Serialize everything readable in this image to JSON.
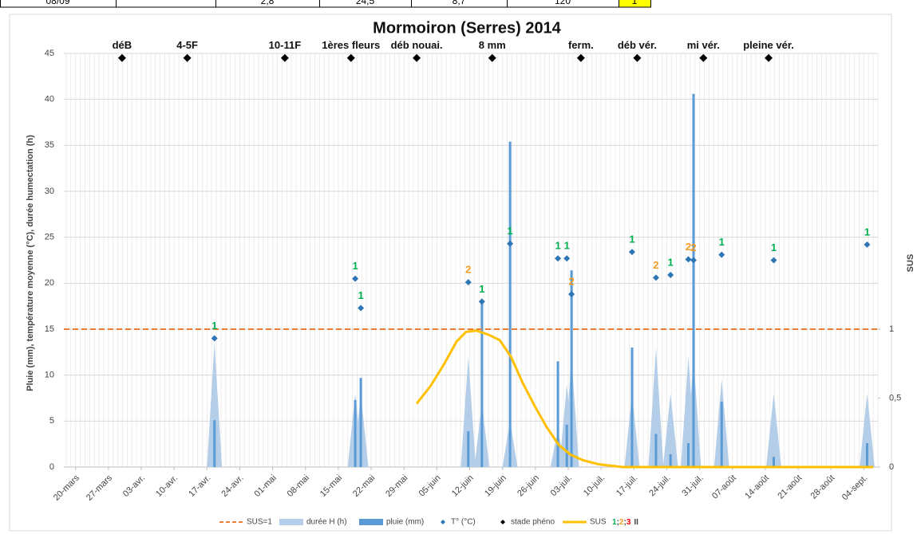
{
  "table_row": [
    "08/09",
    "",
    "2,8",
    "24,5",
    "8,7",
    "120",
    "1"
  ],
  "chart_data": {
    "type": "combo",
    "title": "Mormoiron (Serres) 2014",
    "y_label": "Pluie (mm), température moyenne (°C), durée humectation (h)",
    "y2_label": "SUS",
    "xlim": [
      -2.5,
      171
    ],
    "ylim": [
      0,
      45
    ],
    "y2lim": [
      0,
      3
    ],
    "xticks": [
      {
        "value": 0,
        "label": "20-mars"
      },
      {
        "value": 7,
        "label": "27-mars"
      },
      {
        "value": 14,
        "label": "03-avr."
      },
      {
        "value": 21,
        "label": "10-avr."
      },
      {
        "value": 28,
        "label": "17-avr."
      },
      {
        "value": 35,
        "label": "24-avr."
      },
      {
        "value": 42,
        "label": "01-mai"
      },
      {
        "value": 49,
        "label": "08-mai"
      },
      {
        "value": 56,
        "label": "15-mai"
      },
      {
        "value": 63,
        "label": "22-mai"
      },
      {
        "value": 70,
        "label": "29-mai"
      },
      {
        "value": 77,
        "label": "05-juin"
      },
      {
        "value": 84,
        "label": "12-juin"
      },
      {
        "value": 91,
        "label": "19-juin"
      },
      {
        "value": 98,
        "label": "26-juin"
      },
      {
        "value": 105,
        "label": "03-juil."
      },
      {
        "value": 112,
        "label": "10-juil."
      },
      {
        "value": 119,
        "label": "17-juil."
      },
      {
        "value": 126,
        "label": "24-juil."
      },
      {
        "value": 133,
        "label": "31-juil."
      },
      {
        "value": 140,
        "label": "07-août"
      },
      {
        "value": 147,
        "label": "14-août"
      },
      {
        "value": 154,
        "label": "21-août"
      },
      {
        "value": 161,
        "label": "28-août"
      },
      {
        "value": 168,
        "label": "04-sept."
      }
    ],
    "yticks": [
      0,
      5,
      10,
      15,
      20,
      25,
      30,
      35,
      40,
      45
    ],
    "y2ticks": [
      0,
      {
        "value": 0.5,
        "label": "0,5"
      },
      1
    ],
    "grid": true,
    "threshold": {
      "name": "SUS=1",
      "value": 1,
      "color": "#ed7d31"
    },
    "stages": {
      "name": "stade phéno",
      "color": "#000000",
      "x": [
        9.9,
        23.8,
        44.6,
        58.7,
        72.7,
        88.8,
        107.7,
        119.7,
        133.8,
        147.7
      ],
      "values": [
        44.5,
        44.5,
        44.5,
        44.5,
        44.5,
        44.5,
        44.5,
        44.5,
        44.5,
        44.5
      ],
      "labels": [
        "déB",
        "4-5F",
        "10-11F",
        "1ères fleurs",
        "déb nouai.",
        "8 mm",
        "ferm.",
        "déb vér.",
        "mi vér.",
        "pleine vér."
      ]
    },
    "x": [
      29.6,
      59.6,
      60.8,
      83.7,
      86.6,
      92.6,
      102.8,
      104.7,
      105.7,
      118.6,
      123.7,
      126.8,
      130.6,
      131.7,
      137.7,
      148.8,
      168.7
    ],
    "series": [
      {
        "name": "durée H (h)",
        "color": "#b4cde9",
        "values": [
          13.5,
          8,
          8,
          12,
          7,
          5,
          4,
          9,
          12,
          8,
          13,
          8,
          12,
          12,
          9.5,
          8,
          8
        ]
      },
      {
        "name": "pluie (mm)",
        "color": "#5b9bd5",
        "values": [
          5.1,
          7.3,
          9.7,
          3.9,
          18,
          35.4,
          11.5,
          4.6,
          21.4,
          13,
          3.6,
          1.4,
          2.6,
          40.6,
          7.1,
          1.1,
          2.6
        ]
      },
      {
        "name": "T° (°C)",
        "color": "#2e75b6",
        "values": [
          14,
          20.5,
          17.3,
          20.1,
          18,
          24.3,
          22.7,
          22.7,
          18.8,
          23.4,
          20.6,
          20.9,
          22.6,
          22.5,
          23.1,
          22.5,
          24.2
        ],
        "labels": [
          "1",
          "1",
          "1",
          "2",
          "1",
          "1",
          "1",
          "1",
          "2",
          "1",
          "2",
          "1",
          "2",
          "2",
          "1",
          "1",
          "1"
        ]
      }
    ],
    "sus": {
      "name": "SUS",
      "color": "#ffc000",
      "axis": "y2",
      "x": [
        72.7,
        75.7,
        78.6,
        81.2,
        83.2,
        85.4,
        88,
        90.4,
        92.8,
        95.3,
        97.9,
        100.4,
        103,
        105.5,
        108.1,
        111.5,
        116.6,
        130,
        150,
        170
      ],
      "values": [
        0.46,
        0.59,
        0.75,
        0.91,
        0.98,
        0.99,
        0.96,
        0.92,
        0.8,
        0.61,
        0.44,
        0.29,
        0.16,
        0.09,
        0.05,
        0.02,
        0,
        0,
        0,
        0
      ]
    },
    "classes": [
      {
        "name": "1",
        "color": "#00b050"
      },
      {
        "name": "2",
        "color": "#f59b23"
      },
      {
        "name": "3",
        "color": "#ff0000"
      }
    ],
    "class_separator": ";",
    "class_suffix": "II"
  }
}
